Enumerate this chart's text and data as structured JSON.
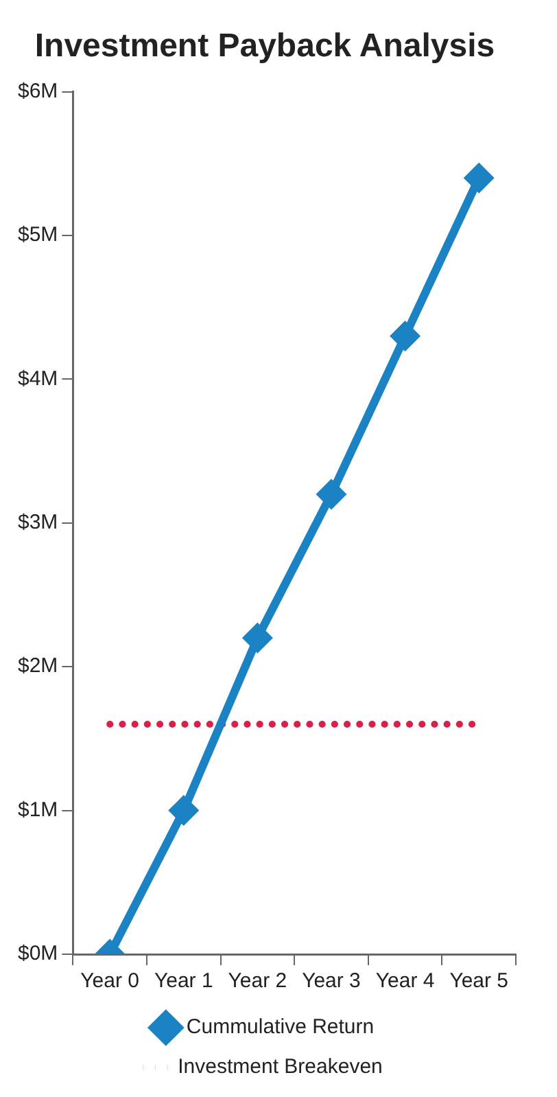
{
  "chart_data": {
    "type": "line",
    "title": "Investment Payback Analysis",
    "categories": [
      "Year 0",
      "Year 1",
      "Year 2",
      "Year 3",
      "Year 4",
      "Year 5"
    ],
    "series": [
      {
        "name": "Cummulative Return",
        "color": "#1b82c4",
        "values": [
          0,
          1.0,
          2.2,
          3.2,
          4.3,
          5.4
        ],
        "marker": "diamond",
        "line_style": "solid"
      },
      {
        "name": "Investment Breakeven",
        "color": "#d8204a",
        "values": [
          1.6,
          1.6,
          1.6,
          1.6,
          1.6,
          1.6
        ],
        "marker": "none",
        "line_style": "dotted"
      }
    ],
    "ylim": [
      0,
      6
    ],
    "yticks": [
      {
        "value": 0,
        "label": "$0M"
      },
      {
        "value": 1,
        "label": "$1M"
      },
      {
        "value": 2,
        "label": "$2M"
      },
      {
        "value": 3,
        "label": "$3M"
      },
      {
        "value": 4,
        "label": "$4M"
      },
      {
        "value": 5,
        "label": "$5M"
      },
      {
        "value": 6,
        "label": "$6M"
      }
    ],
    "grid": false,
    "legend": "bottom"
  }
}
